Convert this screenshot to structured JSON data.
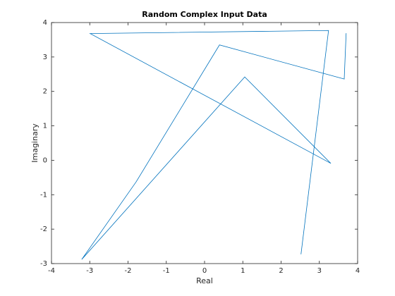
{
  "chart_data": {
    "type": "line",
    "title": "Random Complex Input Data",
    "x_label": "Real",
    "y_label": "Imaginary",
    "x": [
      2.52,
      3.24,
      -2.99,
      3.3,
      1.05,
      -3.21,
      -1.79,
      0.39,
      3.65,
      3.7
    ],
    "series": [
      {
        "color": "#0072bd",
        "values": [
          -2.73,
          3.77,
          3.68,
          -0.09,
          2.42,
          -2.88,
          -0.63,
          3.35,
          2.36,
          3.69
        ]
      }
    ],
    "xlim": [
      -4,
      4
    ],
    "xticks": [
      -4,
      -3,
      -2,
      -1,
      0,
      1,
      2,
      3,
      4
    ],
    "ylim": [
      -3,
      4
    ],
    "yticks": [
      -3,
      -2,
      -1,
      0,
      1,
      2,
      3,
      4
    ],
    "grid": false
  }
}
